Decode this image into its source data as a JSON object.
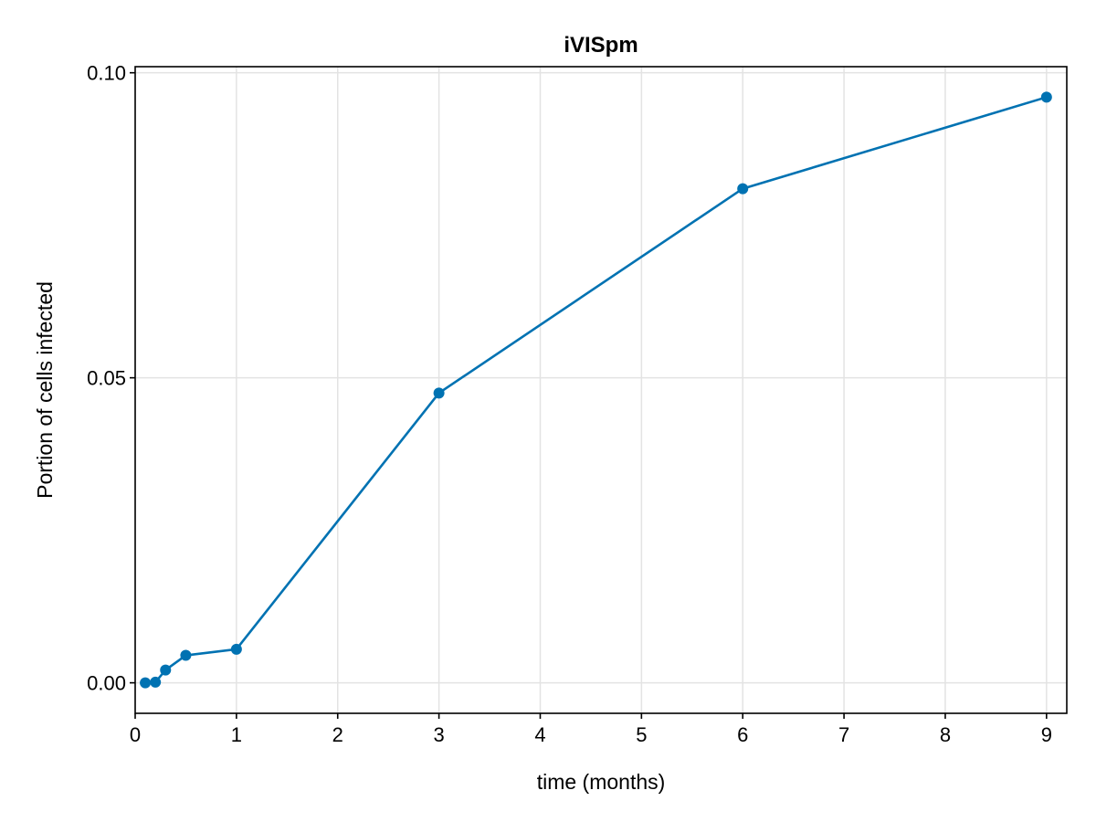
{
  "chart_data": {
    "type": "line",
    "title": "iVISpm",
    "xlabel": "time (months)",
    "ylabel": "Portion of cells infected",
    "xlim": [
      0,
      9.2
    ],
    "ylim": [
      -0.005,
      0.101
    ],
    "x_ticks": [
      0,
      1,
      2,
      3,
      4,
      5,
      6,
      7,
      8,
      9
    ],
    "x_tick_labels": [
      "0",
      "1",
      "2",
      "3",
      "4",
      "5",
      "6",
      "7",
      "8",
      "9"
    ],
    "y_ticks": [
      0.0,
      0.05,
      0.1
    ],
    "y_tick_labels": [
      "0.00",
      "0.05",
      "0.10"
    ],
    "grid": true,
    "color": "#0072b2",
    "series": [
      {
        "x": [
          0.1,
          0.2,
          0.3,
          0.5,
          1,
          3,
          6,
          9
        ],
        "y": [
          0.0,
          0.0001,
          0.0021,
          0.0045,
          0.0055,
          0.0475,
          0.081,
          0.096
        ]
      }
    ]
  }
}
